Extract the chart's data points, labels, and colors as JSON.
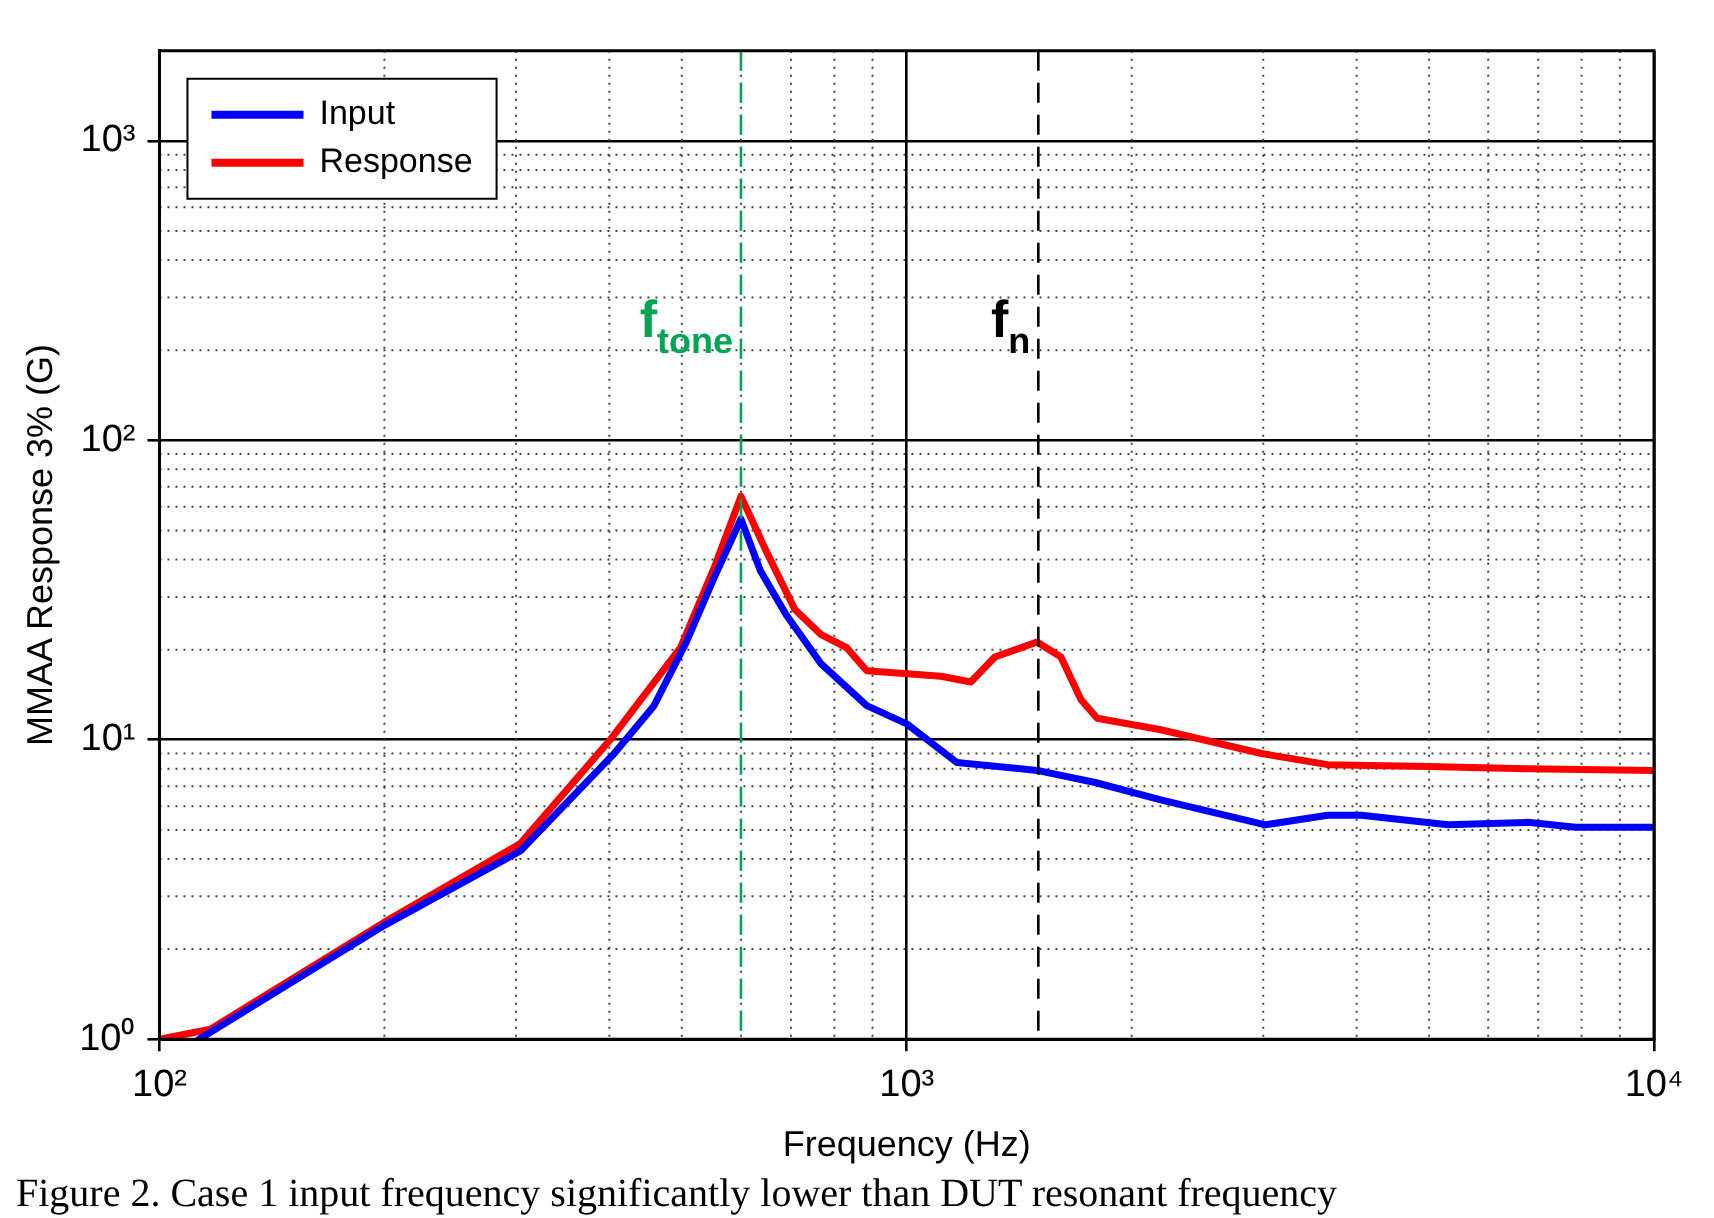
{
  "chart_data": {
    "type": "line",
    "xlabel": "Frequency (Hz)",
    "ylabel": "MMAA Response 3% (G)",
    "log": "xy",
    "xlim": [
      100,
      10000
    ],
    "ylim": [
      1,
      2000
    ],
    "xticks": [
      {
        "value": 100,
        "label": "10²"
      },
      {
        "value": 1000,
        "label": "10³"
      },
      {
        "value": 10000,
        "label": "10⁴"
      }
    ],
    "yticks": [
      {
        "value": 1,
        "label": "10⁰"
      },
      {
        "value": 10,
        "label": "10¹"
      },
      {
        "value": 100,
        "label": "10²"
      },
      {
        "value": 1000,
        "label": "10³"
      }
    ],
    "grid": true,
    "legend": "top left",
    "marker": "none",
    "line_style": "solid",
    "series": [
      {
        "name": "Input",
        "color": "#0000ff",
        "x": [
          113,
          200,
          304,
          406,
          459,
          507,
          553,
          600,
          637,
          690,
          767,
          884,
          1000,
          1167,
          1494,
          1787,
          2188,
          3020,
          3657,
          4060,
          5300,
          6777,
          7850,
          10000
        ],
        "values": [
          1.0,
          2.4,
          4.25,
          9.0,
          13.0,
          21.2,
          35,
          54.6,
          36.7,
          26.1,
          18,
          13.0,
          11.3,
          8.4,
          7.9,
          7.2,
          6.3,
          5.2,
          5.6,
          5.6,
          5.2,
          5.3,
          5.1,
          5.1
        ]
      },
      {
        "name": "Response",
        "color": "#ff0000",
        "x": [
          100,
          117,
          200,
          304,
          401,
          498,
          553,
          600,
          649,
          708,
          767,
          831,
          884,
          1111,
          1218,
          1312,
          1494,
          1608,
          1711,
          1798,
          2188,
          2983,
          3657,
          4977,
          6777,
          10000
        ],
        "values": [
          1.0,
          1.08,
          2.46,
          4.5,
          10,
          20.3,
          37.8,
          65,
          42.5,
          27.3,
          22.5,
          20.3,
          17,
          16.3,
          15.6,
          18.9,
          21.2,
          18.9,
          13.6,
          11.8,
          10.8,
          9.0,
          8.26,
          8.15,
          8.0,
          7.9
        ]
      }
    ],
    "ref_lines": [
      {
        "axis": "x",
        "value": 600,
        "label": "f$_{tone}$",
        "color": "#00a651",
        "line_style": "dashed"
      },
      {
        "axis": "x",
        "value": 1500,
        "label": "f$_{n}$",
        "color": "#000000",
        "line_style": "dashed"
      }
    ],
    "annotations": [
      "Figure 2. Case 1 input frequency significantly lower than DUT resonant frequency"
    ]
  }
}
